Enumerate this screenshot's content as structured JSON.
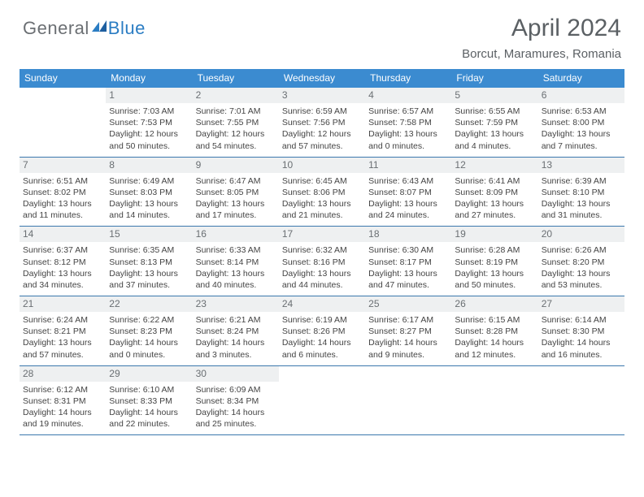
{
  "logo": {
    "general": "General",
    "blue": "Blue"
  },
  "title": "April 2024",
  "location": "Borcut, Maramures, Romania",
  "colors": {
    "header_bg": "#3b8bd0",
    "header_text": "#ffffff",
    "daynum_bg": "#eef0f1",
    "daynum_text": "#6a6f73",
    "rule": "#3b78ad",
    "logo_gray": "#6b6f73",
    "logo_blue": "#2b7dc3",
    "body_text": "#444444",
    "title_text": "#5b6064"
  },
  "weekdays": [
    "Sunday",
    "Monday",
    "Tuesday",
    "Wednesday",
    "Thursday",
    "Friday",
    "Saturday"
  ],
  "weeks": [
    [
      null,
      {
        "n": "1",
        "sunrise": "7:03 AM",
        "sunset": "7:53 PM",
        "daylight": "12 hours and 50 minutes."
      },
      {
        "n": "2",
        "sunrise": "7:01 AM",
        "sunset": "7:55 PM",
        "daylight": "12 hours and 54 minutes."
      },
      {
        "n": "3",
        "sunrise": "6:59 AM",
        "sunset": "7:56 PM",
        "daylight": "12 hours and 57 minutes."
      },
      {
        "n": "4",
        "sunrise": "6:57 AM",
        "sunset": "7:58 PM",
        "daylight": "13 hours and 0 minutes."
      },
      {
        "n": "5",
        "sunrise": "6:55 AM",
        "sunset": "7:59 PM",
        "daylight": "13 hours and 4 minutes."
      },
      {
        "n": "6",
        "sunrise": "6:53 AM",
        "sunset": "8:00 PM",
        "daylight": "13 hours and 7 minutes."
      }
    ],
    [
      {
        "n": "7",
        "sunrise": "6:51 AM",
        "sunset": "8:02 PM",
        "daylight": "13 hours and 11 minutes."
      },
      {
        "n": "8",
        "sunrise": "6:49 AM",
        "sunset": "8:03 PM",
        "daylight": "13 hours and 14 minutes."
      },
      {
        "n": "9",
        "sunrise": "6:47 AM",
        "sunset": "8:05 PM",
        "daylight": "13 hours and 17 minutes."
      },
      {
        "n": "10",
        "sunrise": "6:45 AM",
        "sunset": "8:06 PM",
        "daylight": "13 hours and 21 minutes."
      },
      {
        "n": "11",
        "sunrise": "6:43 AM",
        "sunset": "8:07 PM",
        "daylight": "13 hours and 24 minutes."
      },
      {
        "n": "12",
        "sunrise": "6:41 AM",
        "sunset": "8:09 PM",
        "daylight": "13 hours and 27 minutes."
      },
      {
        "n": "13",
        "sunrise": "6:39 AM",
        "sunset": "8:10 PM",
        "daylight": "13 hours and 31 minutes."
      }
    ],
    [
      {
        "n": "14",
        "sunrise": "6:37 AM",
        "sunset": "8:12 PM",
        "daylight": "13 hours and 34 minutes."
      },
      {
        "n": "15",
        "sunrise": "6:35 AM",
        "sunset": "8:13 PM",
        "daylight": "13 hours and 37 minutes."
      },
      {
        "n": "16",
        "sunrise": "6:33 AM",
        "sunset": "8:14 PM",
        "daylight": "13 hours and 40 minutes."
      },
      {
        "n": "17",
        "sunrise": "6:32 AM",
        "sunset": "8:16 PM",
        "daylight": "13 hours and 44 minutes."
      },
      {
        "n": "18",
        "sunrise": "6:30 AM",
        "sunset": "8:17 PM",
        "daylight": "13 hours and 47 minutes."
      },
      {
        "n": "19",
        "sunrise": "6:28 AM",
        "sunset": "8:19 PM",
        "daylight": "13 hours and 50 minutes."
      },
      {
        "n": "20",
        "sunrise": "6:26 AM",
        "sunset": "8:20 PM",
        "daylight": "13 hours and 53 minutes."
      }
    ],
    [
      {
        "n": "21",
        "sunrise": "6:24 AM",
        "sunset": "8:21 PM",
        "daylight": "13 hours and 57 minutes."
      },
      {
        "n": "22",
        "sunrise": "6:22 AM",
        "sunset": "8:23 PM",
        "daylight": "14 hours and 0 minutes."
      },
      {
        "n": "23",
        "sunrise": "6:21 AM",
        "sunset": "8:24 PM",
        "daylight": "14 hours and 3 minutes."
      },
      {
        "n": "24",
        "sunrise": "6:19 AM",
        "sunset": "8:26 PM",
        "daylight": "14 hours and 6 minutes."
      },
      {
        "n": "25",
        "sunrise": "6:17 AM",
        "sunset": "8:27 PM",
        "daylight": "14 hours and 9 minutes."
      },
      {
        "n": "26",
        "sunrise": "6:15 AM",
        "sunset": "8:28 PM",
        "daylight": "14 hours and 12 minutes."
      },
      {
        "n": "27",
        "sunrise": "6:14 AM",
        "sunset": "8:30 PM",
        "daylight": "14 hours and 16 minutes."
      }
    ],
    [
      {
        "n": "28",
        "sunrise": "6:12 AM",
        "sunset": "8:31 PM",
        "daylight": "14 hours and 19 minutes."
      },
      {
        "n": "29",
        "sunrise": "6:10 AM",
        "sunset": "8:33 PM",
        "daylight": "14 hours and 22 minutes."
      },
      {
        "n": "30",
        "sunrise": "6:09 AM",
        "sunset": "8:34 PM",
        "daylight": "14 hours and 25 minutes."
      },
      null,
      null,
      null,
      null
    ]
  ],
  "labels": {
    "sunrise": "Sunrise: ",
    "sunset": "Sunset: ",
    "daylight": "Daylight: "
  }
}
